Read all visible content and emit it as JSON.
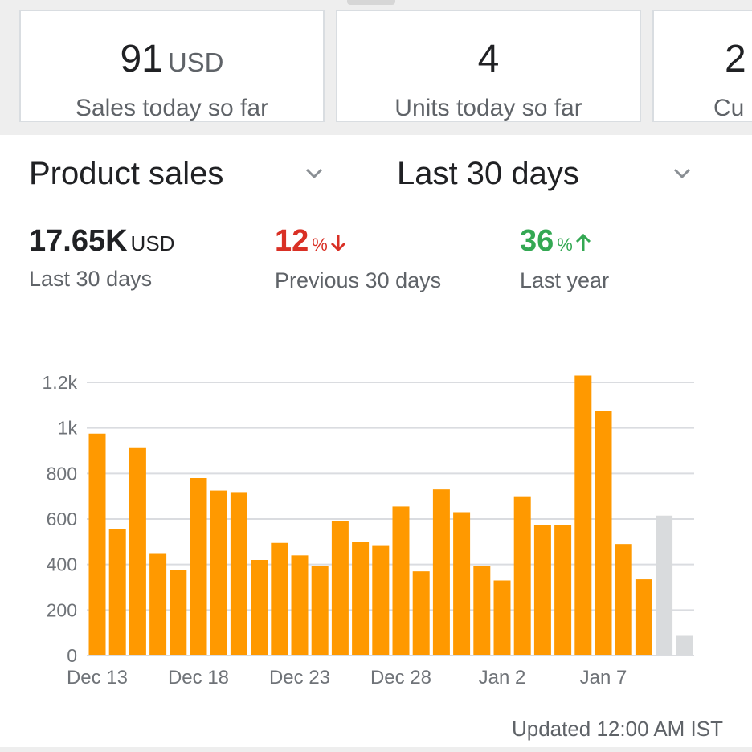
{
  "summary_cards": [
    {
      "value": "91",
      "unit": "USD",
      "label": "Sales today so far"
    },
    {
      "value": "4",
      "unit": "",
      "label": "Units today so far"
    },
    {
      "value": "2",
      "unit": "",
      "label": "Cu"
    }
  ],
  "filters": {
    "metric_select": "Product sales",
    "range_select": "Last 30 days"
  },
  "metrics": {
    "total": {
      "value": "17.65K",
      "unit": "USD",
      "label": "Last 30 days"
    },
    "previous": {
      "value": "12",
      "unit": "%",
      "label": "Previous 30 days",
      "direction": "down",
      "color": "#d93025"
    },
    "last_year": {
      "value": "36",
      "unit": "%",
      "label": "Last year",
      "direction": "up",
      "color": "#34a853"
    }
  },
  "chart_data": {
    "type": "bar",
    "ylim": [
      0,
      1200
    ],
    "y_ticks": [
      "0",
      "200",
      "400",
      "600",
      "800",
      "1k",
      "1.2k"
    ],
    "y_tick_values": [
      0,
      200,
      400,
      600,
      800,
      1000,
      1200
    ],
    "x_tick_labels": [
      {
        "index": 0,
        "label": "Dec 13"
      },
      {
        "index": 5,
        "label": "Dec 18"
      },
      {
        "index": 10,
        "label": "Dec 23"
      },
      {
        "index": 15,
        "label": "Dec 28"
      },
      {
        "index": 20,
        "label": "Jan 2"
      },
      {
        "index": 25,
        "label": "Jan 7"
      }
    ],
    "values": [
      975,
      555,
      915,
      450,
      375,
      780,
      725,
      715,
      420,
      495,
      440,
      395,
      590,
      500,
      485,
      655,
      370,
      730,
      630,
      395,
      330,
      700,
      575,
      575,
      1230,
      1075,
      490,
      335,
      615,
      90
    ],
    "bar_colors": [
      "#ff9900",
      "#ff9900",
      "#ff9900",
      "#ff9900",
      "#ff9900",
      "#ff9900",
      "#ff9900",
      "#ff9900",
      "#ff9900",
      "#ff9900",
      "#ff9900",
      "#ff9900",
      "#ff9900",
      "#ff9900",
      "#ff9900",
      "#ff9900",
      "#ff9900",
      "#ff9900",
      "#ff9900",
      "#ff9900",
      "#ff9900",
      "#ff9900",
      "#ff9900",
      "#ff9900",
      "#ff9900",
      "#ff9900",
      "#ff9900",
      "#ff9900",
      "#d9dbdd",
      "#d9dbdd"
    ],
    "grid": true
  },
  "footer": {
    "updated": "Updated 12:00 AM IST"
  },
  "colors": {
    "accent": "#ff9900",
    "projected": "#d9dbdd",
    "down": "#d93025",
    "up": "#34a853"
  }
}
